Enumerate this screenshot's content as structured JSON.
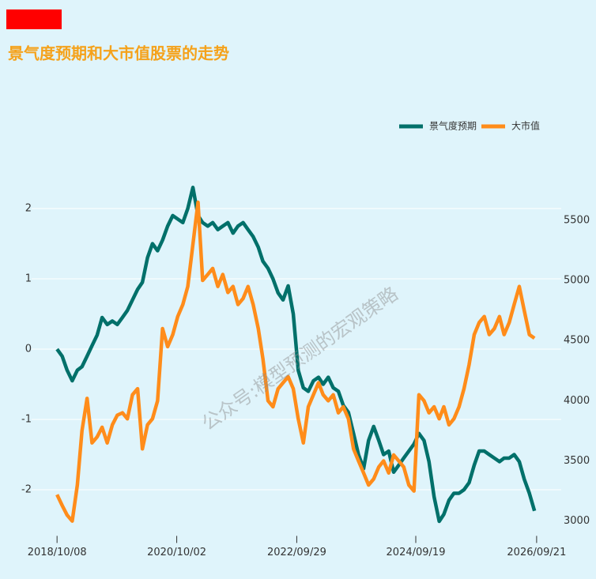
{
  "chart_data": {
    "type": "line",
    "title": "景气度预期和大市值股票的走势",
    "watermark": "公众号:模型预测的宏观策略",
    "legend": "top-right",
    "grid": true,
    "x": [
      "2018/10/08",
      "2018/11/08",
      "2018/12/08",
      "2019/01/08",
      "2019/02/08",
      "2019/03/08",
      "2019/04/08",
      "2019/05/08",
      "2019/06/08",
      "2019/07/08",
      "2019/08/08",
      "2019/09/08",
      "2019/10/08",
      "2019/11/08",
      "2019/12/08",
      "2020/01/08",
      "2020/02/08",
      "2020/03/08",
      "2020/04/08",
      "2020/05/08",
      "2020/06/08",
      "2020/07/08",
      "2020/08/08",
      "2020/09/08",
      "2020/10/08",
      "2020/11/08",
      "2020/12/08",
      "2021/01/08",
      "2021/02/08",
      "2021/03/08",
      "2021/04/08",
      "2021/05/08",
      "2021/06/08",
      "2021/07/08",
      "2021/08/08",
      "2021/09/08",
      "2021/10/08",
      "2021/11/08",
      "2021/12/08",
      "2022/01/08",
      "2022/02/08",
      "2022/03/08",
      "2022/04/08",
      "2022/05/08",
      "2022/06/08",
      "2022/07/08",
      "2022/08/08",
      "2022/09/08",
      "2022/10/08",
      "2022/11/08",
      "2022/12/08",
      "2023/01/08",
      "2023/02/08",
      "2023/03/08",
      "2023/04/08",
      "2023/05/08",
      "2023/06/08",
      "2023/07/08",
      "2023/08/08",
      "2023/09/08",
      "2023/10/08",
      "2023/11/08",
      "2023/12/08",
      "2024/01/08",
      "2024/02/08",
      "2024/03/08",
      "2024/04/08",
      "2024/05/08",
      "2024/06/08",
      "2024/07/08",
      "2024/08/08",
      "2024/09/08",
      "2024/10/08",
      "2024/11/08",
      "2024/12/08",
      "2025/01/08",
      "2025/02/08",
      "2025/03/08",
      "2025/04/08",
      "2025/05/08",
      "2025/06/08",
      "2025/07/08",
      "2025/08/08",
      "2025/09/08",
      "2025/10/08",
      "2025/11/08",
      "2025/12/08",
      "2026/01/08",
      "2026/02/08",
      "2026/03/08",
      "2026/04/08",
      "2026/05/08",
      "2026/06/08",
      "2026/07/08",
      "2026/08/08",
      "2026/09/08"
    ],
    "xlim": [
      "2018/05/07",
      "2027/02/17"
    ],
    "xticks": [
      "2018/10/08",
      "2020/10/02",
      "2022/09/29",
      "2024/09/19",
      "2026/09/21"
    ],
    "ylim": [
      -2.6,
      2.5
    ],
    "yticks": [
      -2,
      -1,
      0,
      1,
      2
    ],
    "y2lim": [
      2910,
      5890
    ],
    "y2ticks": [
      3000,
      3500,
      4000,
      4500,
      5000,
      5500
    ],
    "series": [
      {
        "name": "景气度预期",
        "color": "#00706a",
        "values": [
          0,
          -0.1,
          -0.3,
          -0.45,
          -0.3,
          -0.25,
          -0.1,
          0.05,
          0.2,
          0.45,
          0.35,
          0.4,
          0.35,
          0.45,
          0.55,
          0.7,
          0.85,
          0.95,
          1.3,
          1.5,
          1.4,
          1.55,
          1.75,
          1.9,
          1.85,
          1.8,
          2.0,
          2.3,
          1.9,
          1.8,
          1.75,
          1.8,
          1.7,
          1.75,
          1.8,
          1.65,
          1.75,
          1.8,
          1.7,
          1.6,
          1.45,
          1.25,
          1.15,
          1.0,
          0.8,
          0.7,
          0.9,
          0.5,
          -0.3,
          -0.55,
          -0.6,
          -0.45,
          -0.4,
          -0.5,
          -0.4,
          -0.55,
          -0.6,
          -0.8,
          -0.9,
          -1.2,
          -1.5,
          -1.7,
          -1.3,
          -1.1,
          -1.3,
          -1.5,
          -1.45,
          -1.75,
          -1.65,
          -1.55,
          -1.45,
          -1.35,
          -1.2,
          -1.3,
          -1.6,
          -2.1,
          -2.45,
          -2.35,
          -2.15,
          -2.05,
          -2.05,
          -2.0,
          -1.9,
          -1.65,
          -1.45,
          -1.45,
          -1.5,
          -1.55,
          -1.6,
          -1.55,
          -1.55,
          -1.5,
          -1.6,
          -1.85,
          -2.05,
          -2.3
        ]
      },
      {
        "name": "大市值",
        "color": "#ff8c1a",
        "axis": "y2",
        "values": [
          3220,
          3130,
          3050,
          3000,
          3300,
          3750,
          4020,
          3650,
          3700,
          3780,
          3650,
          3800,
          3880,
          3900,
          3850,
          4050,
          4100,
          3600,
          3800,
          3850,
          4000,
          4600,
          4450,
          4550,
          4700,
          4800,
          4950,
          5300,
          5650,
          5000,
          5050,
          5100,
          4950,
          5050,
          4900,
          4950,
          4800,
          4850,
          4950,
          4800,
          4600,
          4350,
          4000,
          3950,
          4100,
          4150,
          4200,
          4100,
          3850,
          3650,
          3950,
          4050,
          4150,
          4050,
          4000,
          4050,
          3900,
          3950,
          3850,
          3600,
          3500,
          3400,
          3300,
          3350,
          3450,
          3500,
          3400,
          3550,
          3500,
          3450,
          3300,
          3250,
          4050,
          4000,
          3900,
          3950,
          3850,
          3950,
          3800,
          3850,
          3950,
          4100,
          4300,
          4550,
          4650,
          4700,
          4550,
          4600,
          4700,
          4550,
          4650,
          4800,
          4950,
          4750,
          4550,
          4520
        ]
      }
    ]
  }
}
